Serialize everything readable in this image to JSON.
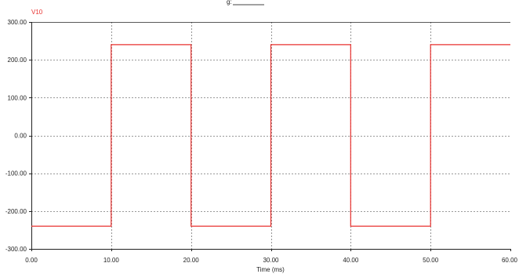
{
  "header": {
    "partial_title": "g:"
  },
  "chart_data": {
    "type": "line",
    "series": [
      {
        "name": "V10",
        "color": "#e8312f",
        "x": [
          0,
          10,
          10,
          20,
          20,
          30,
          30,
          40,
          40,
          50,
          50,
          60
        ],
        "y": [
          -240,
          -240,
          240,
          240,
          -240,
          -240,
          240,
          240,
          -240,
          -240,
          240,
          240
        ]
      }
    ],
    "xlabel": "Time (ms)",
    "ylabel": "",
    "xlim": [
      0,
      60
    ],
    "ylim": [
      -300,
      300
    ],
    "xticks": [
      "0.00",
      "10.00",
      "20.00",
      "30.00",
      "40.00",
      "50.00",
      "60.00"
    ],
    "yticks": [
      "300.00",
      "200.00",
      "100.00",
      "0.00",
      "-100.00",
      "-200.00",
      "-300.00"
    ],
    "grid": true,
    "legend": "top-left"
  }
}
